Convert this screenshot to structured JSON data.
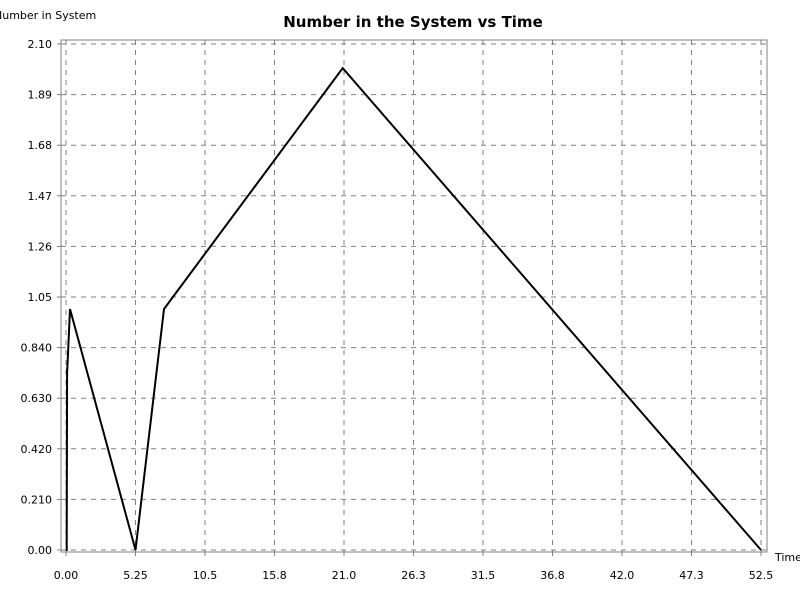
{
  "chart_data": {
    "type": "line",
    "title": "Number in the System vs Time",
    "xlabel": "Time",
    "ylabel": "Number in System",
    "xlim": [
      0,
      52.5
    ],
    "ylim": [
      0,
      2.1
    ],
    "x_ticks": [
      "0.00",
      "5.25",
      "10.5",
      "15.8",
      "21.0",
      "26.3",
      "31.5",
      "36.8",
      "42.0",
      "47.3",
      "52.5"
    ],
    "y_ticks": [
      "0.00",
      "0.210",
      "0.420",
      "0.630",
      "0.840",
      "1.05",
      "1.26",
      "1.47",
      "1.68",
      "1.89",
      "2.10"
    ],
    "grid": true,
    "colors": {
      "series": "#000000",
      "grid": "#808080",
      "background": "#ffffff"
    },
    "series": [
      {
        "x": [
          0.0,
          0.05,
          0.08,
          0.1,
          0.3,
          5.25,
          7.4,
          20.9,
          52.5
        ],
        "y": [
          0.0,
          0.0,
          0.75,
          0.75,
          1.0,
          0.0,
          1.0,
          2.0,
          0.0
        ]
      }
    ]
  }
}
